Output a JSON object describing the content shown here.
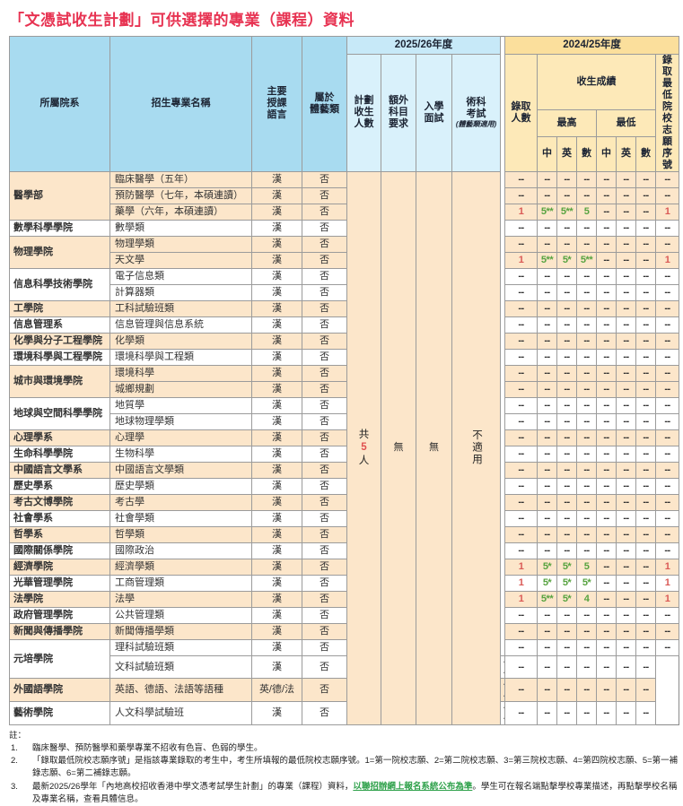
{
  "title": "「文憑試收生計劃」可供選擇的專業（課程）資料",
  "colors": {
    "title_red": "#e73352",
    "header_blue": "#a8dbf0",
    "year2526_blue": "#c7e9f8",
    "year2425_gold": "#fbdf9c",
    "row_peach": "#fce6ca",
    "score_green": "#57a340",
    "value_red": "#da5a56",
    "link_green": "#2fa14b"
  },
  "table": {
    "headers": {
      "college": "所屬院系",
      "program": "招生專業名稱",
      "language": "主要\n授課\n語言",
      "arts_sports": "屬於\n體藝類",
      "year_2526": "2025/26年度",
      "planned_intake": "計劃\n收生\n人數",
      "extra_subject": "額外\n科目\n要求",
      "interview": "入學\n面試",
      "practical_exam": "術科\n考試",
      "practical_exam_note": "(體藝類適用)",
      "year_2425": "2024/25年度",
      "admitted": "錄取\n人數",
      "admission_scores": "收生成績",
      "highest": "最高",
      "lowest": "最低",
      "chinese": "中",
      "english": "英",
      "math": "數",
      "chinese2": "中",
      "english2": "英",
      "math2": "數",
      "lowest_choice": "錄取\n最低\n院校\n志願\n序號"
    },
    "merged": {
      "planned_intake_prefix": "共",
      "planned_intake_number": "5",
      "planned_intake_suffix": "人",
      "extra_subject": "無",
      "interview": "無",
      "practical_exam": "不適用"
    },
    "groups": [
      {
        "college": "醫學部",
        "programs": [
          {
            "name": "臨床醫學（五年）",
            "lang": "漢",
            "arts": "否",
            "stats": [
              "--",
              "--",
              "--",
              "--",
              "--",
              "--",
              "--",
              "--"
            ]
          },
          {
            "name": "預防醫學（七年，本碩連讀）",
            "lang": "漢",
            "arts": "否",
            "stats": [
              "--",
              "--",
              "--",
              "--",
              "--",
              "--",
              "--",
              "--"
            ]
          },
          {
            "name": "藥學（六年，本碩連讀）",
            "lang": "漢",
            "arts": "否",
            "stats": [
              "1",
              "5**",
              "5**",
              "5",
              "--",
              "--",
              "--",
              "1"
            ]
          }
        ]
      },
      {
        "college": "數學科學學院",
        "programs": [
          {
            "name": "數學類",
            "lang": "漢",
            "arts": "否",
            "stats": [
              "--",
              "--",
              "--",
              "--",
              "--",
              "--",
              "--",
              "--"
            ]
          }
        ]
      },
      {
        "college": "物理學院",
        "programs": [
          {
            "name": "物理學類",
            "lang": "漢",
            "arts": "否",
            "stats": [
              "--",
              "--",
              "--",
              "--",
              "--",
              "--",
              "--",
              "--"
            ]
          },
          {
            "name": "天文學",
            "lang": "漢",
            "arts": "否",
            "stats": [
              "1",
              "5**",
              "5*",
              "5**",
              "--",
              "--",
              "--",
              "1"
            ]
          }
        ]
      },
      {
        "college": "信息科學技術學院",
        "programs": [
          {
            "name": "電子信息類",
            "lang": "漢",
            "arts": "否",
            "stats": [
              "--",
              "--",
              "--",
              "--",
              "--",
              "--",
              "--",
              "--"
            ]
          },
          {
            "name": "計算器類",
            "lang": "漢",
            "arts": "否",
            "stats": [
              "--",
              "--",
              "--",
              "--",
              "--",
              "--",
              "--",
              "--"
            ]
          }
        ]
      },
      {
        "college": "工學院",
        "programs": [
          {
            "name": "工科試驗班類",
            "lang": "漢",
            "arts": "否",
            "stats": [
              "--",
              "--",
              "--",
              "--",
              "--",
              "--",
              "--",
              "--"
            ]
          }
        ]
      },
      {
        "college": "信息管理系",
        "programs": [
          {
            "name": "信息管理與信息系統",
            "lang": "漢",
            "arts": "否",
            "stats": [
              "--",
              "--",
              "--",
              "--",
              "--",
              "--",
              "--",
              "--"
            ]
          }
        ]
      },
      {
        "college": "化學與分子工程學院",
        "programs": [
          {
            "name": "化學類",
            "lang": "漢",
            "arts": "否",
            "stats": [
              "--",
              "--",
              "--",
              "--",
              "--",
              "--",
              "--",
              "--"
            ]
          }
        ]
      },
      {
        "college": "環境科學與工程學院",
        "programs": [
          {
            "name": "環境科學與工程類",
            "lang": "漢",
            "arts": "否",
            "stats": [
              "--",
              "--",
              "--",
              "--",
              "--",
              "--",
              "--",
              "--"
            ]
          }
        ]
      },
      {
        "college": "城市與環境學院",
        "programs": [
          {
            "name": "環境科學",
            "lang": "漢",
            "arts": "否",
            "stats": [
              "--",
              "--",
              "--",
              "--",
              "--",
              "--",
              "--",
              "--"
            ]
          },
          {
            "name": "城鄉規劃",
            "lang": "漢",
            "arts": "否",
            "stats": [
              "--",
              "--",
              "--",
              "--",
              "--",
              "--",
              "--",
              "--"
            ]
          }
        ]
      },
      {
        "college": "地球與空間科學學院",
        "programs": [
          {
            "name": "地質學",
            "lang": "漢",
            "arts": "否",
            "stats": [
              "--",
              "--",
              "--",
              "--",
              "--",
              "--",
              "--",
              "--"
            ]
          },
          {
            "name": "地球物理學類",
            "lang": "漢",
            "arts": "否",
            "stats": [
              "--",
              "--",
              "--",
              "--",
              "--",
              "--",
              "--",
              "--"
            ]
          }
        ]
      },
      {
        "college": "心理學系",
        "programs": [
          {
            "name": "心理學",
            "lang": "漢",
            "arts": "否",
            "stats": [
              "--",
              "--",
              "--",
              "--",
              "--",
              "--",
              "--",
              "--"
            ]
          }
        ]
      },
      {
        "college": "生命科學學院",
        "programs": [
          {
            "name": "生物科學",
            "lang": "漢",
            "arts": "否",
            "stats": [
              "--",
              "--",
              "--",
              "--",
              "--",
              "--",
              "--",
              "--"
            ]
          }
        ]
      },
      {
        "college": "中國語言文學系",
        "programs": [
          {
            "name": "中國語言文學類",
            "lang": "漢",
            "arts": "否",
            "stats": [
              "--",
              "--",
              "--",
              "--",
              "--",
              "--",
              "--",
              "--"
            ]
          }
        ]
      },
      {
        "college": "歷史學系",
        "programs": [
          {
            "name": "歷史學類",
            "lang": "漢",
            "arts": "否",
            "stats": [
              "--",
              "--",
              "--",
              "--",
              "--",
              "--",
              "--",
              "--"
            ]
          }
        ]
      },
      {
        "college": "考古文博學院",
        "programs": [
          {
            "name": "考古學",
            "lang": "漢",
            "arts": "否",
            "stats": [
              "--",
              "--",
              "--",
              "--",
              "--",
              "--",
              "--",
              "--"
            ]
          }
        ]
      },
      {
        "college": "社會學系",
        "programs": [
          {
            "name": "社會學類",
            "lang": "漢",
            "arts": "否",
            "stats": [
              "--",
              "--",
              "--",
              "--",
              "--",
              "--",
              "--",
              "--"
            ]
          }
        ]
      },
      {
        "college": "哲學系",
        "programs": [
          {
            "name": "哲學類",
            "lang": "漢",
            "arts": "否",
            "stats": [
              "--",
              "--",
              "--",
              "--",
              "--",
              "--",
              "--",
              "--"
            ]
          }
        ]
      },
      {
        "college": "國際關係學院",
        "programs": [
          {
            "name": "國際政治",
            "lang": "漢",
            "arts": "否",
            "stats": [
              "--",
              "--",
              "--",
              "--",
              "--",
              "--",
              "--",
              "--"
            ]
          }
        ]
      },
      {
        "college": "經濟學院",
        "programs": [
          {
            "name": "經濟學類",
            "lang": "漢",
            "arts": "否",
            "stats": [
              "1",
              "5*",
              "5*",
              "5",
              "--",
              "--",
              "--",
              "1"
            ]
          }
        ]
      },
      {
        "college": "光華管理學院",
        "programs": [
          {
            "name": "工商管理類",
            "lang": "漢",
            "arts": "否",
            "stats": [
              "1",
              "5*",
              "5*",
              "5*",
              "--",
              "--",
              "--",
              "1"
            ]
          }
        ]
      },
      {
        "college": "法學院",
        "programs": [
          {
            "name": "法學",
            "lang": "漢",
            "arts": "否",
            "stats": [
              "1",
              "5**",
              "5*",
              "4",
              "--",
              "--",
              "--",
              "1"
            ]
          }
        ]
      },
      {
        "college": "政府管理學院",
        "programs": [
          {
            "name": "公共管理類",
            "lang": "漢",
            "arts": "否",
            "stats": [
              "--",
              "--",
              "--",
              "--",
              "--",
              "--",
              "--",
              "--"
            ]
          }
        ]
      },
      {
        "college": "新聞與傳播學院",
        "programs": [
          {
            "name": "新聞傳播學類",
            "lang": "漢",
            "arts": "否",
            "stats": [
              "--",
              "--",
              "--",
              "--",
              "--",
              "--",
              "--",
              "--"
            ]
          }
        ]
      },
      {
        "college": "元培學院",
        "programs": [
          {
            "name": "理科試驗班類",
            "lang": "漢",
            "arts": "否",
            "stats": [
              "--",
              "--",
              "--",
              "--",
              "--",
              "--",
              "--",
              "--"
            ]
          },
          {
            "name": "文科試驗班類",
            "lang": "漢",
            "arts": "否",
            "stats": [
              "--",
              "--",
              "--",
              "--",
              "--",
              "--",
              "--",
              "--"
            ]
          }
        ]
      },
      {
        "college": "外國語學院",
        "programs": [
          {
            "name": "英語、德語、法語等語種",
            "lang": "英/德/法",
            "arts": "否",
            "stats": [
              "--",
              "--",
              "--",
              "--",
              "--",
              "--",
              "--",
              "--"
            ]
          }
        ]
      },
      {
        "college": "藝術學院",
        "programs": [
          {
            "name": "人文科學試驗班",
            "lang": "漢",
            "arts": "否",
            "stats": [
              "--",
              "--",
              "--",
              "--",
              "--",
              "--",
              "--",
              "--"
            ]
          }
        ]
      }
    ]
  },
  "notes": {
    "label": "註：",
    "items": [
      {
        "num": "1.",
        "text": "臨床醫學、預防醫學和藥學專業不招收有色盲、色弱的學生。"
      },
      {
        "num": "2.",
        "text": "「錄取最低院校志願序號」是指該專業錄取的考生中，考生所填報的最低院校志願序號。1=第一院校志願、2=第二院校志願、3=第三院校志願、4=第四院校志願、5=第一補錄志願、6=第二補錄志願。"
      },
      {
        "num": "3.",
        "pre": "最新2025/26學年「內地高校招收香港中學文憑考試學生計劃」的專業（課程）資料，",
        "link": "以聯招辦網上報名系統公布為準",
        "post": "。學生可在報名端點擊學校專業描述，再點擊學校名稱及專業名稱，查看具體信息。"
      }
    ]
  }
}
